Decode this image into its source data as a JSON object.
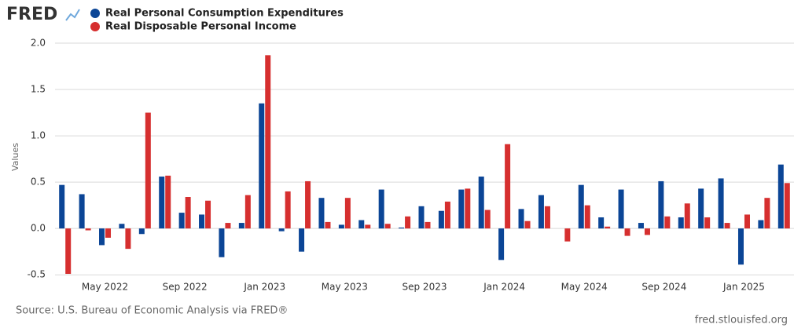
{
  "chart_data": {
    "type": "bar",
    "logo": "FRED",
    "ylabel": "Values",
    "source": "Source: U.S. Bureau of Economic Analysis via FRED®",
    "credit": "fred.stlouisfed.org",
    "categories": [
      null,
      null,
      "May 2022",
      null,
      null,
      null,
      "Sep 2022",
      null,
      null,
      null,
      "Jan 2023",
      null,
      null,
      null,
      "May 2023",
      null,
      null,
      null,
      "Sep 2023",
      null,
      null,
      null,
      "Jan 2024",
      null,
      null,
      null,
      "May 2024",
      null,
      null,
      null,
      "Sep 2024",
      null,
      null,
      null,
      "Jan 2025",
      null,
      null
    ],
    "series": [
      {
        "name": "Real Personal Consumption Expenditures",
        "color": "#0b4596",
        "values": [
          0.47,
          0.37,
          -0.18,
          0.05,
          -0.06,
          0.56,
          0.17,
          0.15,
          -0.31,
          0.06,
          1.35,
          -0.03,
          -0.25,
          0.33,
          0.04,
          0.09,
          0.42,
          0.01,
          0.24,
          0.19,
          0.42,
          0.56,
          -0.34,
          0.21,
          0.36,
          0.0,
          0.47,
          0.12,
          0.42,
          0.06,
          0.51,
          0.12,
          0.43,
          0.54,
          -0.39,
          0.09,
          0.69
        ]
      },
      {
        "name": "Real Disposable Personal Income",
        "color": "#d62f2f",
        "values": [
          -0.49,
          -0.02,
          -0.1,
          -0.22,
          1.25,
          0.57,
          0.34,
          0.3,
          0.06,
          0.36,
          1.87,
          0.4,
          0.51,
          0.07,
          0.33,
          0.04,
          0.05,
          0.13,
          0.07,
          0.29,
          0.43,
          0.2,
          0.91,
          0.08,
          0.24,
          -0.14,
          0.25,
          0.02,
          -0.08,
          -0.07,
          0.13,
          0.27,
          0.12,
          0.06,
          0.15,
          0.33,
          0.49
        ]
      }
    ],
    "ylim": [
      -0.6,
      2.0
    ],
    "yticks": [
      {
        "value": 2.0,
        "label": "2.0"
      },
      1.5,
      {
        "value": 1.0,
        "label": "1.0"
      },
      0.5,
      {
        "value": 0.0,
        "label": "0.0"
      },
      -0.5
    ],
    "grid": true
  }
}
